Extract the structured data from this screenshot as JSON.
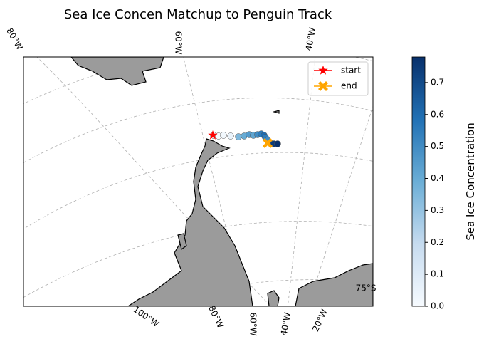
{
  "title": "Sea Ice Concen Matchup to Penguin Track",
  "gridline_labels": {
    "top": [
      "80°W",
      "60°W",
      "40°W"
    ],
    "bottom": [
      "100°W",
      "80°W",
      "60°W",
      "40°W",
      "20°W"
    ],
    "right": [
      "75°S"
    ]
  },
  "legend": [
    {
      "label": "start",
      "color": "#ff0000"
    },
    {
      "label": "end",
      "color": "#ffa500"
    }
  ],
  "colorbar": {
    "label": "Sea Ice Concentration",
    "colormap": "Blues",
    "lim": [
      0,
      0.78
    ],
    "ticks": [
      {
        "value": 0,
        "label": "0.0"
      },
      0.1,
      0.2,
      0.3,
      0.4,
      0.5,
      0.6,
      0.7
    ]
  },
  "track": {
    "values": [
      0,
      0,
      0.02,
      0.05,
      0.35,
      0.4,
      0.45,
      0.42,
      0.5,
      0.55,
      0.6,
      0.55,
      0.5,
      0.7,
      0.75,
      0.78
    ]
  }
}
